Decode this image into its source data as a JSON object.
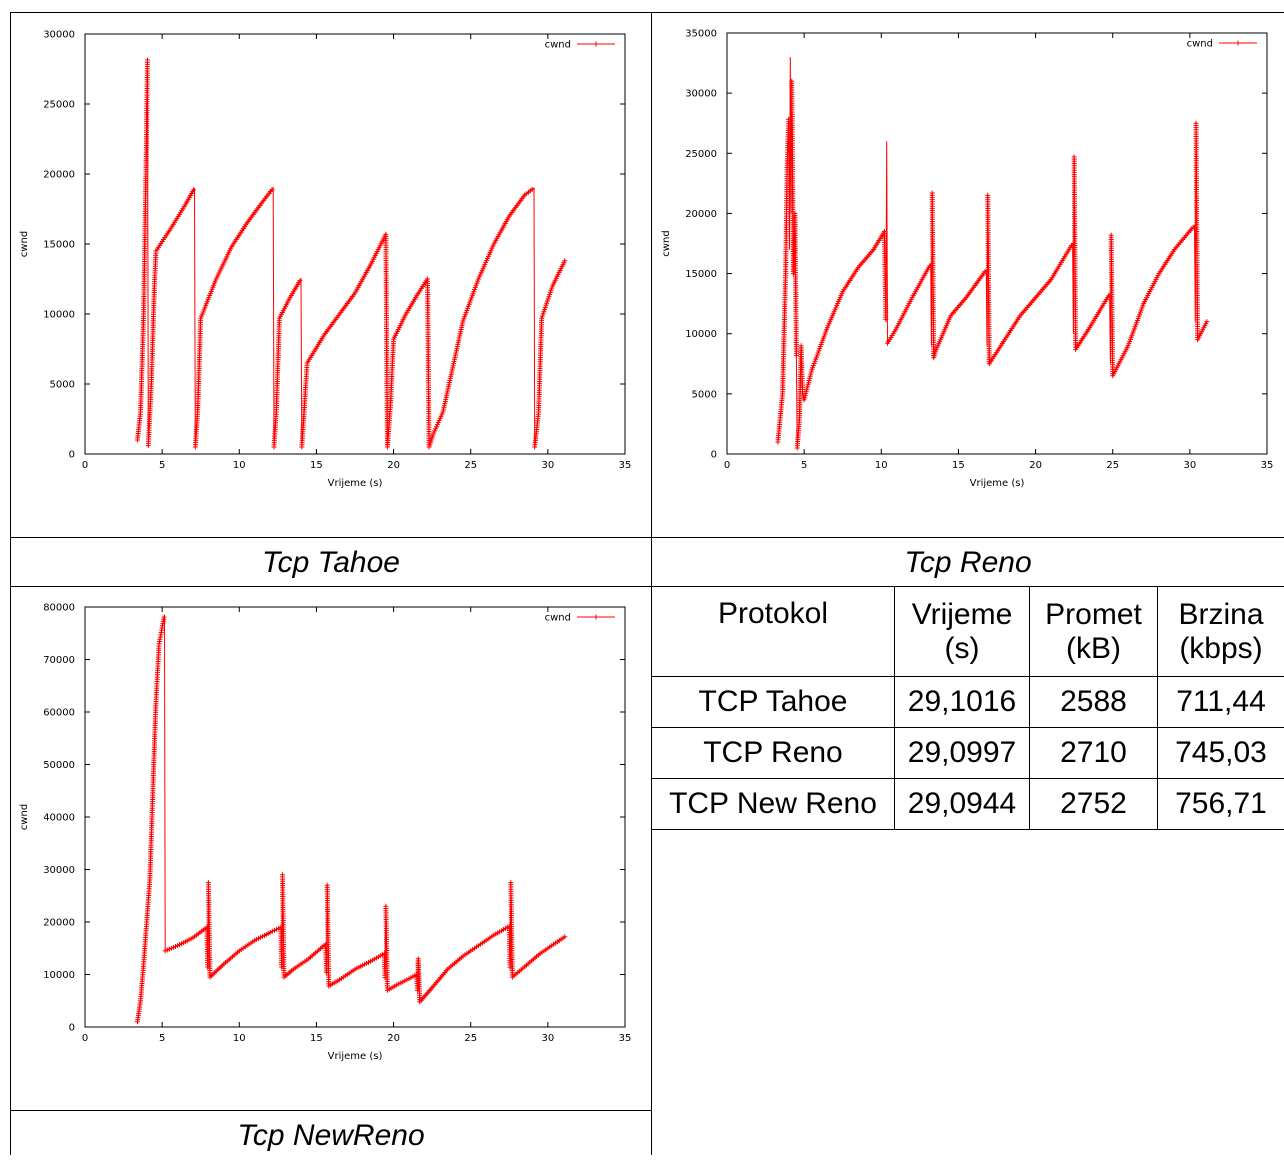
{
  "captions": {
    "tahoe": "Tcp Tahoe",
    "reno": "Tcp Reno",
    "newreno": "Tcp NewReno"
  },
  "chart_data": [
    {
      "id": "tahoe",
      "type": "line",
      "title": "",
      "xlabel": "Vrijeme (s)",
      "ylabel": "cwnd",
      "xlim": [
        0,
        35
      ],
      "ylim": [
        0,
        30000
      ],
      "xticks": [
        0,
        5,
        10,
        15,
        20,
        25,
        30,
        35
      ],
      "yticks": [
        0,
        5000,
        10000,
        15000,
        20000,
        25000,
        30000
      ],
      "legend": "top-right",
      "grid": false,
      "color": "#ff0000",
      "series": [
        {
          "name": "cwnd",
          "points": [
            [
              3.4,
              1000
            ],
            [
              3.6,
              3000
            ],
            [
              3.8,
              10000
            ],
            [
              3.95,
              20000
            ],
            [
              4.05,
              28300
            ],
            [
              4.1,
              600
            ],
            [
              4.3,
              5000
            ],
            [
              4.5,
              12000
            ],
            [
              4.6,
              14500
            ],
            [
              5.5,
              16000
            ],
            [
              6.5,
              17800
            ],
            [
              7.1,
              19000
            ],
            [
              7.15,
              500
            ],
            [
              7.3,
              3000
            ],
            [
              7.5,
              9700
            ],
            [
              8.5,
              12500
            ],
            [
              9.5,
              14800
            ],
            [
              10.5,
              16500
            ],
            [
              11.5,
              18000
            ],
            [
              12.2,
              19000
            ],
            [
              12.25,
              500
            ],
            [
              12.4,
              3000
            ],
            [
              12.6,
              9700
            ],
            [
              13.3,
              11200
            ],
            [
              14.0,
              12500
            ],
            [
              14.05,
              500
            ],
            [
              14.2,
              3000
            ],
            [
              14.4,
              6500
            ],
            [
              15.5,
              8500
            ],
            [
              16.5,
              10000
            ],
            [
              17.5,
              11500
            ],
            [
              18.5,
              13500
            ],
            [
              19.5,
              15700
            ],
            [
              19.6,
              500
            ],
            [
              19.8,
              3500
            ],
            [
              20.0,
              8200
            ],
            [
              20.8,
              10000
            ],
            [
              21.5,
              11300
            ],
            [
              22.2,
              12500
            ],
            [
              22.3,
              500
            ],
            [
              22.6,
              1500
            ],
            [
              23.2,
              3000
            ],
            [
              23.8,
              6000
            ],
            [
              24.5,
              9500
            ],
            [
              25.5,
              12500
            ],
            [
              26.5,
              15000
            ],
            [
              27.5,
              17000
            ],
            [
              28.5,
              18500
            ],
            [
              29.1,
              19000
            ],
            [
              29.15,
              500
            ],
            [
              29.4,
              3000
            ],
            [
              29.6,
              9700
            ],
            [
              30.3,
              12000
            ],
            [
              31.1,
              13800
            ]
          ]
        }
      ]
    },
    {
      "id": "reno",
      "type": "line",
      "title": "",
      "xlabel": "Vrijeme (s)",
      "ylabel": "cwnd",
      "xlim": [
        0,
        35
      ],
      "ylim": [
        0,
        35000
      ],
      "xticks": [
        0,
        5,
        10,
        15,
        20,
        25,
        30,
        35
      ],
      "yticks": [
        0,
        5000,
        10000,
        15000,
        20000,
        25000,
        30000,
        35000
      ],
      "legend": "top-right",
      "grid": false,
      "color": "#ff0000",
      "series": [
        {
          "name": "cwnd",
          "points": [
            [
              3.3,
              1000
            ],
            [
              3.6,
              5000
            ],
            [
              3.8,
              15000
            ],
            [
              3.9,
              24000
            ],
            [
              4.0,
              28000
            ],
            [
              4.05,
              17000
            ],
            [
              4.1,
              33000
            ],
            [
              4.15,
              20000
            ],
            [
              4.2,
              31000
            ],
            [
              4.3,
              15000
            ],
            [
              4.4,
              20000
            ],
            [
              4.5,
              8000
            ],
            [
              4.55,
              500
            ],
            [
              4.7,
              3000
            ],
            [
              4.8,
              9000
            ],
            [
              4.9,
              5000
            ],
            [
              5.0,
              4500
            ],
            [
              5.5,
              7000
            ],
            [
              6.5,
              10500
            ],
            [
              7.5,
              13500
            ],
            [
              8.5,
              15500
            ],
            [
              9.5,
              17000
            ],
            [
              10.2,
              18500
            ],
            [
              10.3,
              11000
            ],
            [
              10.35,
              26000
            ],
            [
              10.4,
              9200
            ],
            [
              11.0,
              10500
            ],
            [
              12.0,
              13000
            ],
            [
              13.2,
              15800
            ],
            [
              13.25,
              9000
            ],
            [
              13.3,
              21700
            ],
            [
              13.4,
              8000
            ],
            [
              13.5,
              8500
            ],
            [
              14.5,
              11500
            ],
            [
              15.5,
              13000
            ],
            [
              16.8,
              15300
            ],
            [
              16.85,
              9000
            ],
            [
              16.9,
              21500
            ],
            [
              17.0,
              7500
            ],
            [
              18.0,
              9500
            ],
            [
              19.0,
              11500
            ],
            [
              20.0,
              13000
            ],
            [
              21.0,
              14500
            ],
            [
              22.4,
              17500
            ],
            [
              22.45,
              10000
            ],
            [
              22.5,
              24700
            ],
            [
              22.6,
              8700
            ],
            [
              23.5,
              10500
            ],
            [
              24.8,
              13300
            ],
            [
              24.85,
              7500
            ],
            [
              24.9,
              18200
            ],
            [
              25.0,
              6500
            ],
            [
              26.0,
              9000
            ],
            [
              27.0,
              12500
            ],
            [
              28.0,
              15000
            ],
            [
              29.0,
              17000
            ],
            [
              30.3,
              19000
            ],
            [
              30.35,
              11000
            ],
            [
              30.4,
              27500
            ],
            [
              30.5,
              9500
            ],
            [
              31.1,
              11000
            ]
          ]
        }
      ]
    },
    {
      "id": "newreno",
      "type": "line",
      "title": "",
      "xlabel": "Vrijeme (s)",
      "ylabel": "cwnd",
      "xlim": [
        0,
        35
      ],
      "ylim": [
        0,
        80000
      ],
      "xticks": [
        0,
        5,
        10,
        15,
        20,
        25,
        30,
        35
      ],
      "yticks": [
        0,
        10000,
        20000,
        30000,
        40000,
        50000,
        60000,
        70000,
        80000
      ],
      "legend": "top-right",
      "grid": false,
      "color": "#ff0000",
      "series": [
        {
          "name": "cwnd",
          "points": [
            [
              3.4,
              1000
            ],
            [
              3.6,
              5000
            ],
            [
              3.8,
              12000
            ],
            [
              4.0,
              20000
            ],
            [
              4.2,
              28000
            ],
            [
              4.4,
              45000
            ],
            [
              4.6,
              62000
            ],
            [
              4.8,
              73000
            ],
            [
              5.0,
              76000
            ],
            [
              5.15,
              78500
            ],
            [
              5.2,
              14500
            ],
            [
              6.0,
              15500
            ],
            [
              7.0,
              17000
            ],
            [
              7.9,
              19000
            ],
            [
              7.95,
              11000
            ],
            [
              8.0,
              27500
            ],
            [
              8.1,
              9500
            ],
            [
              9.0,
              12000
            ],
            [
              10.0,
              14500
            ],
            [
              11.0,
              16500
            ],
            [
              12.0,
              18000
            ],
            [
              12.7,
              19000
            ],
            [
              12.75,
              11000
            ],
            [
              12.8,
              29000
            ],
            [
              12.9,
              9500
            ],
            [
              13.5,
              11000
            ],
            [
              14.5,
              13000
            ],
            [
              15.6,
              15800
            ],
            [
              15.65,
              10000
            ],
            [
              15.7,
              27000
            ],
            [
              15.8,
              7800
            ],
            [
              16.5,
              9000
            ],
            [
              17.5,
              11000
            ],
            [
              18.5,
              12500
            ],
            [
              19.4,
              14000
            ],
            [
              19.45,
              9000
            ],
            [
              19.5,
              23000
            ],
            [
              19.6,
              7000
            ],
            [
              20.2,
              8000
            ],
            [
              21.0,
              9200
            ],
            [
              21.5,
              10000
            ],
            [
              21.55,
              7000
            ],
            [
              21.6,
              13000
            ],
            [
              21.7,
              4800
            ],
            [
              22.5,
              7500
            ],
            [
              23.5,
              11000
            ],
            [
              24.5,
              13500
            ],
            [
              25.5,
              15500
            ],
            [
              26.5,
              17500
            ],
            [
              27.5,
              19200
            ],
            [
              27.55,
              11000
            ],
            [
              27.6,
              27500
            ],
            [
              27.7,
              9500
            ],
            [
              28.5,
              11500
            ],
            [
              29.5,
              14000
            ],
            [
              30.5,
              16000
            ],
            [
              31.1,
              17200
            ]
          ]
        }
      ]
    }
  ],
  "table": {
    "headers": [
      "Protokol",
      "Vrijeme (s)",
      "Promet (kB)",
      "Brzina (kbps)"
    ],
    "rows": [
      [
        "TCP Tahoe",
        "29,1016",
        "2588",
        "711,44"
      ],
      [
        "TCP Reno",
        "29,0997",
        "2710",
        "745,03"
      ],
      [
        "TCP New Reno",
        "29,0944",
        "2752",
        "756,71"
      ]
    ]
  }
}
